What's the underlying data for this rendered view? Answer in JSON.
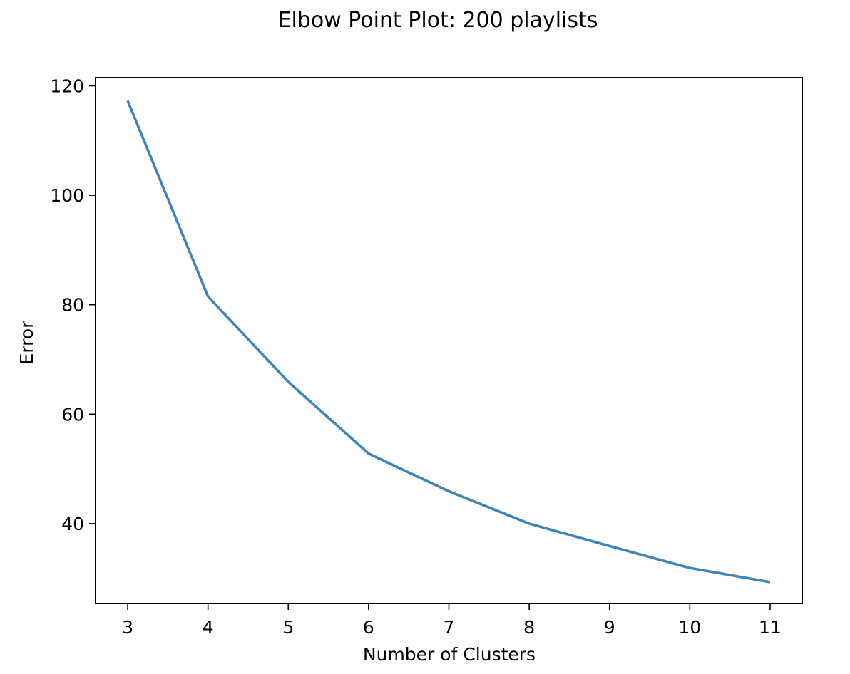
{
  "chart_data": {
    "type": "line",
    "title": "Elbow Point Plot: 200 playlists",
    "xlabel": "Number of Clusters",
    "ylabel": "Error",
    "x": [
      3,
      4,
      5,
      6,
      7,
      8,
      9,
      10,
      11
    ],
    "series": [
      {
        "values": [
          117.3,
          81.5,
          65.9,
          52.8,
          45.9,
          40.0,
          35.9,
          31.9,
          29.3
        ],
        "color": "#3d85bc"
      }
    ],
    "xlim": [
      2.6,
      11.4
    ],
    "ylim": [
      25.4,
      121.5
    ],
    "xticks": [
      3,
      4,
      5,
      6,
      7,
      8,
      9,
      10,
      11
    ],
    "yticks": [
      40,
      60,
      80,
      100,
      120
    ],
    "grid": false,
    "legend": "none"
  }
}
